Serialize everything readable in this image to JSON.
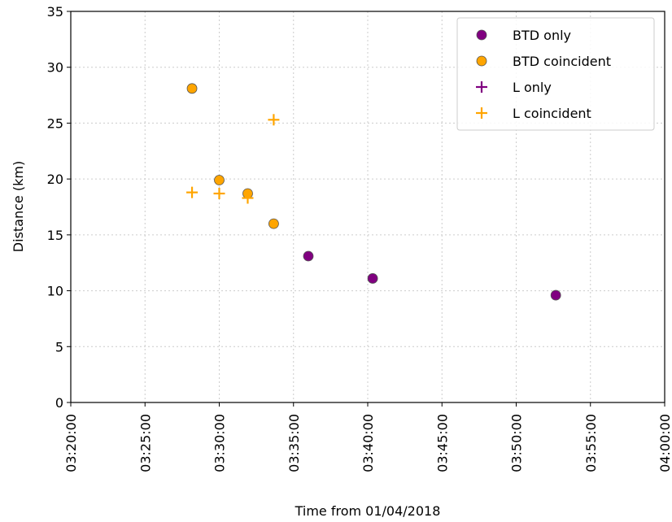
{
  "chart_data": {
    "type": "scatter",
    "title": "",
    "xlabel": "Time from 01/04/2018",
    "ylabel": "Distance (km)",
    "x_ticks": [
      "03:20:00",
      "03:25:00",
      "03:30:00",
      "03:35:00",
      "03:40:00",
      "03:45:00",
      "03:50:00",
      "03:55:00",
      "04:00:00"
    ],
    "y_ticks": [
      "0",
      "5",
      "10",
      "15",
      "20",
      "25",
      "30",
      "35"
    ],
    "xlim": [
      "03:20:00",
      "04:00:00"
    ],
    "ylim": [
      0,
      35
    ],
    "grid": true,
    "legend_position": "top-right",
    "series": [
      {
        "name": "BTD only",
        "marker": "circle",
        "color": "#800080",
        "points": [
          {
            "x": "03:36:00",
            "y": 13.1
          },
          {
            "x": "03:40:20",
            "y": 11.1
          },
          {
            "x": "03:52:40",
            "y": 9.6
          }
        ]
      },
      {
        "name": "BTD coincident",
        "marker": "circle",
        "color": "#FFA500",
        "points": [
          {
            "x": "03:28:10",
            "y": 28.1
          },
          {
            "x": "03:30:00",
            "y": 19.9
          },
          {
            "x": "03:31:55",
            "y": 18.7
          },
          {
            "x": "03:33:40",
            "y": 16.0
          }
        ]
      },
      {
        "name": "L only",
        "marker": "plus",
        "color": "#800080",
        "points": []
      },
      {
        "name": "L coincident",
        "marker": "plus",
        "color": "#FFA500",
        "points": [
          {
            "x": "03:28:10",
            "y": 18.8
          },
          {
            "x": "03:30:00",
            "y": 18.7
          },
          {
            "x": "03:31:55",
            "y": 18.3
          },
          {
            "x": "03:33:40",
            "y": 25.3
          }
        ]
      }
    ]
  }
}
